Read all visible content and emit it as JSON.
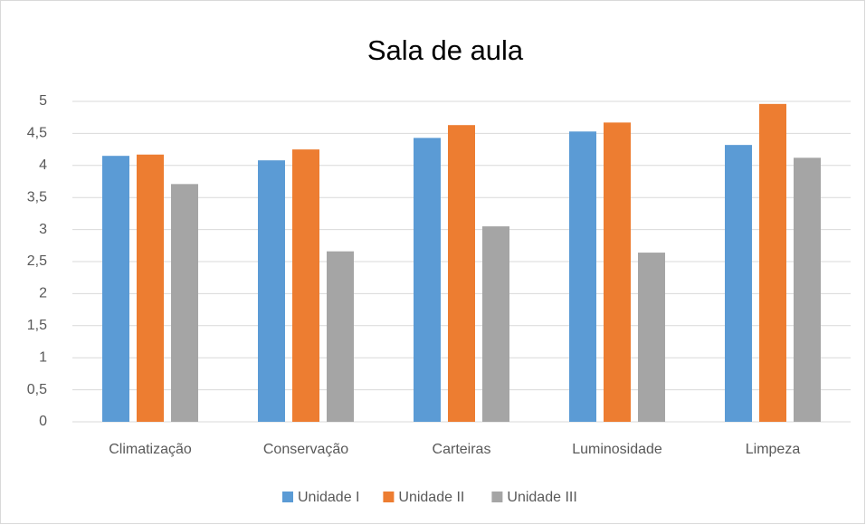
{
  "chart_data": {
    "type": "bar",
    "title": "Sala de aula",
    "categories": [
      "Climatização",
      "Conservação",
      "Carteiras",
      "Luminosidade",
      "Limpeza"
    ],
    "series": [
      {
        "name": "Unidade I",
        "color": "#5b9bd5",
        "values": [
          4.15,
          4.08,
          4.43,
          4.53,
          4.32
        ]
      },
      {
        "name": "Unidade II",
        "color": "#ed7d31",
        "values": [
          4.17,
          4.25,
          4.63,
          4.67,
          4.96
        ]
      },
      {
        "name": "Unidade III",
        "color": "#a5a5a5",
        "values": [
          3.71,
          2.66,
          3.05,
          2.64,
          4.12
        ]
      }
    ],
    "ylim": [
      0,
      5
    ],
    "yticks": [
      0,
      {
        "value": 0.5,
        "label": "0,5"
      },
      1,
      {
        "value": 1.5,
        "label": "1,5"
      },
      2,
      {
        "value": 2.5,
        "label": "2,5"
      },
      3,
      {
        "value": 3.5,
        "label": "3,5"
      },
      4,
      {
        "value": 4.5,
        "label": "4,5"
      },
      5
    ],
    "grid": true,
    "legend": "bottom"
  }
}
